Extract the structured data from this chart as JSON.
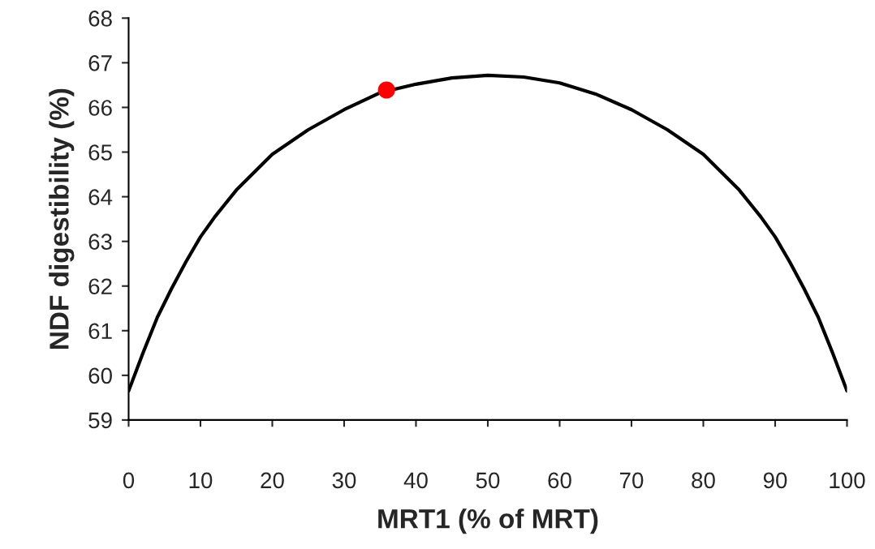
{
  "chart_data": {
    "type": "line",
    "xlabel": "MRT1 (% of MRT)",
    "ylabel": "NDF digestibility (%)",
    "xlim": [
      0,
      100
    ],
    "ylim": [
      59,
      68
    ],
    "xticks": [
      0,
      10,
      20,
      30,
      40,
      50,
      60,
      70,
      80,
      90,
      100
    ],
    "yticks": [
      59,
      60,
      61,
      62,
      63,
      64,
      65,
      66,
      67,
      68
    ],
    "grid": false,
    "series": [
      {
        "type": "line",
        "color": "#000000",
        "marker": "none",
        "x": [
          0,
          2,
          4,
          6,
          8,
          10,
          12,
          15,
          20,
          25,
          30,
          35,
          40,
          45,
          50,
          55,
          60,
          65,
          70,
          75,
          80,
          85,
          88,
          90,
          92,
          94,
          96,
          98,
          100
        ],
        "values": [
          59.65,
          60.5,
          61.3,
          61.95,
          62.55,
          63.1,
          63.55,
          64.15,
          64.95,
          65.5,
          65.95,
          66.33,
          66.52,
          66.66,
          66.72,
          66.68,
          66.55,
          66.3,
          65.95,
          65.5,
          64.95,
          64.15,
          63.55,
          63.1,
          62.55,
          61.95,
          61.3,
          60.5,
          59.65
        ]
      },
      {
        "type": "scatter",
        "color": "#ff0000",
        "marker": "circle",
        "x": [
          35.9
        ],
        "values": [
          66.39
        ]
      }
    ]
  }
}
